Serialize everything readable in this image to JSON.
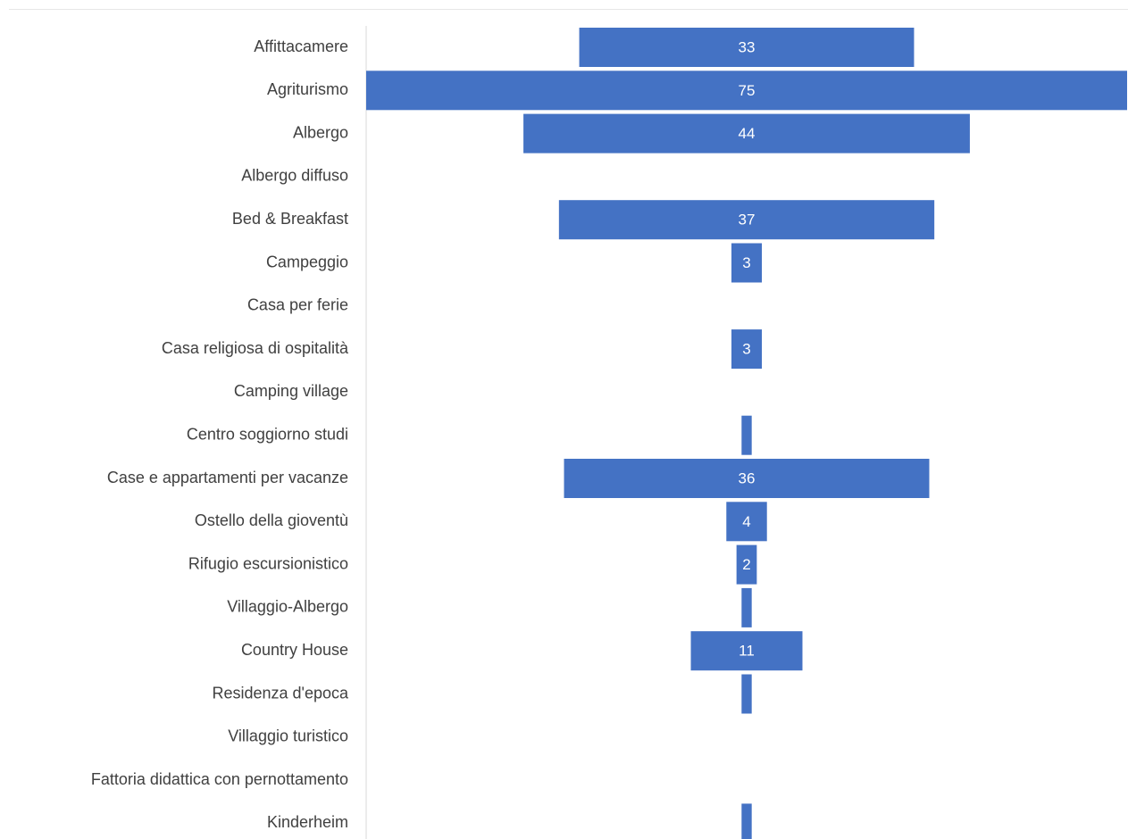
{
  "chart_data": {
    "type": "bar",
    "orientation": "horizontal",
    "style": "funnel-centered",
    "categories": [
      "Affittacamere",
      "Agriturismo",
      "Albergo",
      "Albergo diffuso",
      "Bed & Breakfast",
      "Campeggio",
      "Casa per ferie",
      "Casa religiosa di ospitalità",
      "Camping village",
      "Centro soggiorno studi",
      "Case e appartamenti per vacanze",
      "Ostello della gioventù",
      "Rifugio escursionistico",
      "Villaggio-Albergo",
      "Country House",
      "Residenza d'epoca",
      "Villaggio turistico",
      "Fattoria didattica con pernottamento",
      "Kinderheim"
    ],
    "values": [
      33,
      75,
      44,
      0,
      37,
      3,
      0,
      3,
      0,
      1,
      36,
      4,
      2,
      1,
      11,
      1,
      0,
      0,
      1
    ],
    "data_labels": [
      "33",
      "75",
      "44",
      "",
      "37",
      "3",
      "",
      "3",
      "",
      "",
      "36",
      "4",
      "2",
      "",
      "11",
      "",
      "",
      "",
      ""
    ],
    "bar_color": "#4472C4",
    "label_color": "#404040",
    "data_label_color": "#FFFFFF",
    "title": "",
    "xlabel": "",
    "ylabel": "",
    "grid": false,
    "legend": "none"
  }
}
